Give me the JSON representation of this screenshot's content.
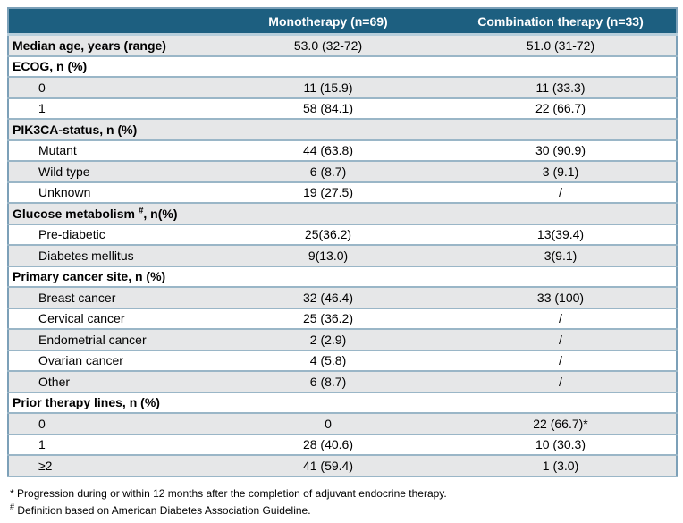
{
  "colors": {
    "header_bg": "#1d5f80",
    "header_text": "#ffffff",
    "row_stripe_bg": "#e6e7e8",
    "row_plain_bg": "#ffffff",
    "row_border": "#9ab6c7",
    "outer_border": "#7ca0b8",
    "header_underline": "#b7cedb"
  },
  "table": {
    "columns": [
      "",
      "Monotherapy (n=69)",
      "Combination therapy (n=33)"
    ],
    "rows": [
      {
        "type": "category",
        "label": "Median age, years (range)",
        "mono": "53.0 (32-72)",
        "combo": "51.0 (31-72)"
      },
      {
        "type": "category",
        "label": "ECOG, n (%)",
        "mono": "",
        "combo": ""
      },
      {
        "type": "sub",
        "label": "0",
        "mono": "11 (15.9)",
        "combo": "11 (33.3)"
      },
      {
        "type": "sub",
        "label": "1",
        "mono": "58 (84.1)",
        "combo": "22 (66.7)"
      },
      {
        "type": "category",
        "label": "PIK3CA-status, n (%)",
        "mono": "",
        "combo": ""
      },
      {
        "type": "sub",
        "label": "Mutant",
        "mono": "44 (63.8)",
        "combo": "30 (90.9)"
      },
      {
        "type": "sub",
        "label": "Wild type",
        "mono": "6 (8.7)",
        "combo": "3 (9.1)"
      },
      {
        "type": "sub",
        "label": "Unknown",
        "mono": "19 (27.5)",
        "combo": "/"
      },
      {
        "type": "category",
        "label": "Glucose metabolism ",
        "label_sup": "#",
        "label_suffix": ", n(%)",
        "mono": "",
        "combo": ""
      },
      {
        "type": "sub",
        "label": "Pre-diabetic",
        "mono": "25(36.2)",
        "combo": "13(39.4)"
      },
      {
        "type": "sub",
        "label": "Diabetes mellitus",
        "mono": "9(13.0)",
        "combo": "3(9.1)"
      },
      {
        "type": "category",
        "label": "Primary cancer site, n (%)",
        "mono": "",
        "combo": ""
      },
      {
        "type": "sub",
        "label": "Breast cancer",
        "mono": "32 (46.4)",
        "combo": "33 (100)"
      },
      {
        "type": "sub",
        "label": "Cervical cancer",
        "mono": "25 (36.2)",
        "combo": "/"
      },
      {
        "type": "sub",
        "label": "Endometrial cancer",
        "mono": "2 (2.9)",
        "combo": "/"
      },
      {
        "type": "sub",
        "label": "Ovarian cancer",
        "mono": "4 (5.8)",
        "combo": "/"
      },
      {
        "type": "sub",
        "label": "Other",
        "mono": "6 (8.7)",
        "combo": "/"
      },
      {
        "type": "category",
        "label": "Prior therapy lines, n (%)",
        "mono": "",
        "combo": ""
      },
      {
        "type": "sub",
        "label": "0",
        "mono": "0",
        "combo": "22 (66.7)*"
      },
      {
        "type": "sub",
        "label": "1",
        "mono": "28 (40.6)",
        "combo": "10 (30.3)"
      },
      {
        "type": "sub",
        "label": "≥2",
        "mono": "41 (59.4)",
        "combo": "1 (3.0)"
      }
    ]
  },
  "footnotes": [
    {
      "marker": "*",
      "text": "Progression during or within 12 months after the completion of adjuvant endocrine therapy."
    },
    {
      "marker": "#",
      "text": "Definition based on  American Diabetes Association Guideline."
    }
  ]
}
